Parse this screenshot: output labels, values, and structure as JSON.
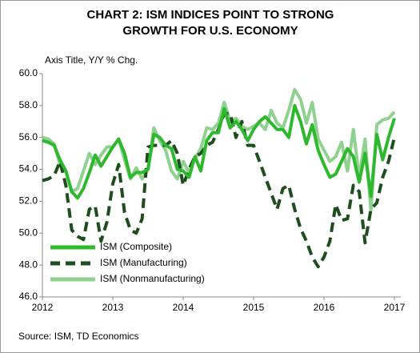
{
  "chart_data": {
    "type": "line",
    "title": "CHART 2: ISM INDICES POINT TO STRONG GROWTH FOR U.S. ECONOMY",
    "y_axis_label": "Axis Title, Y/Y % Chg.",
    "source": "Source: ISM, TD Economics",
    "categories": [
      "2012",
      null,
      null,
      null,
      null,
      null,
      null,
      null,
      null,
      null,
      null,
      null,
      "2013",
      null,
      null,
      null,
      null,
      null,
      null,
      null,
      null,
      null,
      null,
      null,
      "2014",
      null,
      null,
      null,
      null,
      null,
      null,
      null,
      null,
      null,
      null,
      null,
      "2015",
      null,
      null,
      null,
      null,
      null,
      null,
      null,
      null,
      null,
      null,
      null,
      "2016",
      null,
      null,
      null,
      null,
      null,
      null,
      null,
      null,
      null,
      null,
      null,
      "2017"
    ],
    "ylim": [
      46,
      60
    ],
    "yticks": [
      {
        "value": 46,
        "label": "46.0"
      },
      {
        "value": 48,
        "label": "48.0"
      },
      {
        "value": 50,
        "label": "50.0"
      },
      {
        "value": 52,
        "label": "52.0"
      },
      {
        "value": 54,
        "label": "54.0"
      },
      {
        "value": 56,
        "label": "56.0"
      },
      {
        "value": 58,
        "label": "58.0"
      },
      {
        "value": 60,
        "label": "60.0"
      }
    ],
    "grid": false,
    "legend": "lower left",
    "series": [
      {
        "name": "ISM (Composite)",
        "color": "#2eb82e",
        "style": "solid",
        "values": [
          55.8,
          55.7,
          55.5,
          54.6,
          53.9,
          52.6,
          52.2,
          52.8,
          53.8,
          54.9,
          54.2,
          54.8,
          55.4,
          55.9,
          55.0,
          53.5,
          53.8,
          53.8,
          54.0,
          56.2,
          56.0,
          55.5,
          55.3,
          54.0,
          53.9,
          53.5,
          54.8,
          53.9,
          55.8,
          56.3,
          56.3,
          57.8,
          56.6,
          57.0,
          56.5,
          55.8,
          56.5,
          57.0,
          57.3,
          56.9,
          56.5,
          56.5,
          56.0,
          58.0,
          57.0,
          55.6,
          56.8,
          55.2,
          54.3,
          53.5,
          53.7,
          54.5,
          55.3,
          54.8,
          53.2,
          55.0,
          52.3,
          56.2,
          54.6,
          56.0,
          57.2
        ]
      },
      {
        "name": "ISM (Manufacturing)",
        "color": "#1e4d1e",
        "style": "dashed",
        "values": [
          53.3,
          53.4,
          53.6,
          54.5,
          53.0,
          50.2,
          49.8,
          49.6,
          51.5,
          51.7,
          49.5,
          50.7,
          53.1,
          54.3,
          51.3,
          50.2,
          50.0,
          50.9,
          55.4,
          55.5,
          55.5,
          55.5,
          55.8,
          55.0,
          53.0,
          54.0,
          54.8,
          55.0,
          55.5,
          55.7,
          56.5,
          57.5,
          57.5,
          56.0,
          57.0,
          55.5,
          55.5,
          54.5,
          53.5,
          52.5,
          51.5,
          52.8,
          53.0,
          51.5,
          50.3,
          49.5,
          48.5,
          47.9,
          48.5,
          49.5,
          51.8,
          50.8,
          50.9,
          53.0,
          52.6,
          49.4,
          51.5,
          51.9,
          53.5,
          54.5,
          56.0
        ]
      },
      {
        "name": "ISM (Nonmanufacturing)",
        "color": "#8fd18f",
        "style": "solid",
        "values": [
          56.0,
          55.9,
          55.6,
          54.3,
          53.9,
          52.6,
          52.8,
          53.9,
          55.0,
          54.3,
          54.9,
          55.4,
          55.4,
          55.9,
          54.6,
          53.4,
          54.1,
          53.4,
          54.0,
          56.6,
          55.8,
          55.2,
          53.9,
          53.4,
          54.5,
          53.8,
          54.7,
          55.3,
          56.6,
          56.5,
          56.9,
          58.2,
          57.0,
          57.2,
          56.7,
          56.5,
          56.7,
          56.9,
          56.5,
          57.7,
          56.9,
          56.6,
          57.7,
          59.0,
          58.4,
          56.9,
          58.2,
          55.9,
          55.2,
          54.5,
          54.8,
          55.7,
          53.9,
          56.5,
          53.5,
          55.9,
          51.4,
          56.8,
          57.1,
          57.2,
          57.6
        ]
      }
    ]
  }
}
